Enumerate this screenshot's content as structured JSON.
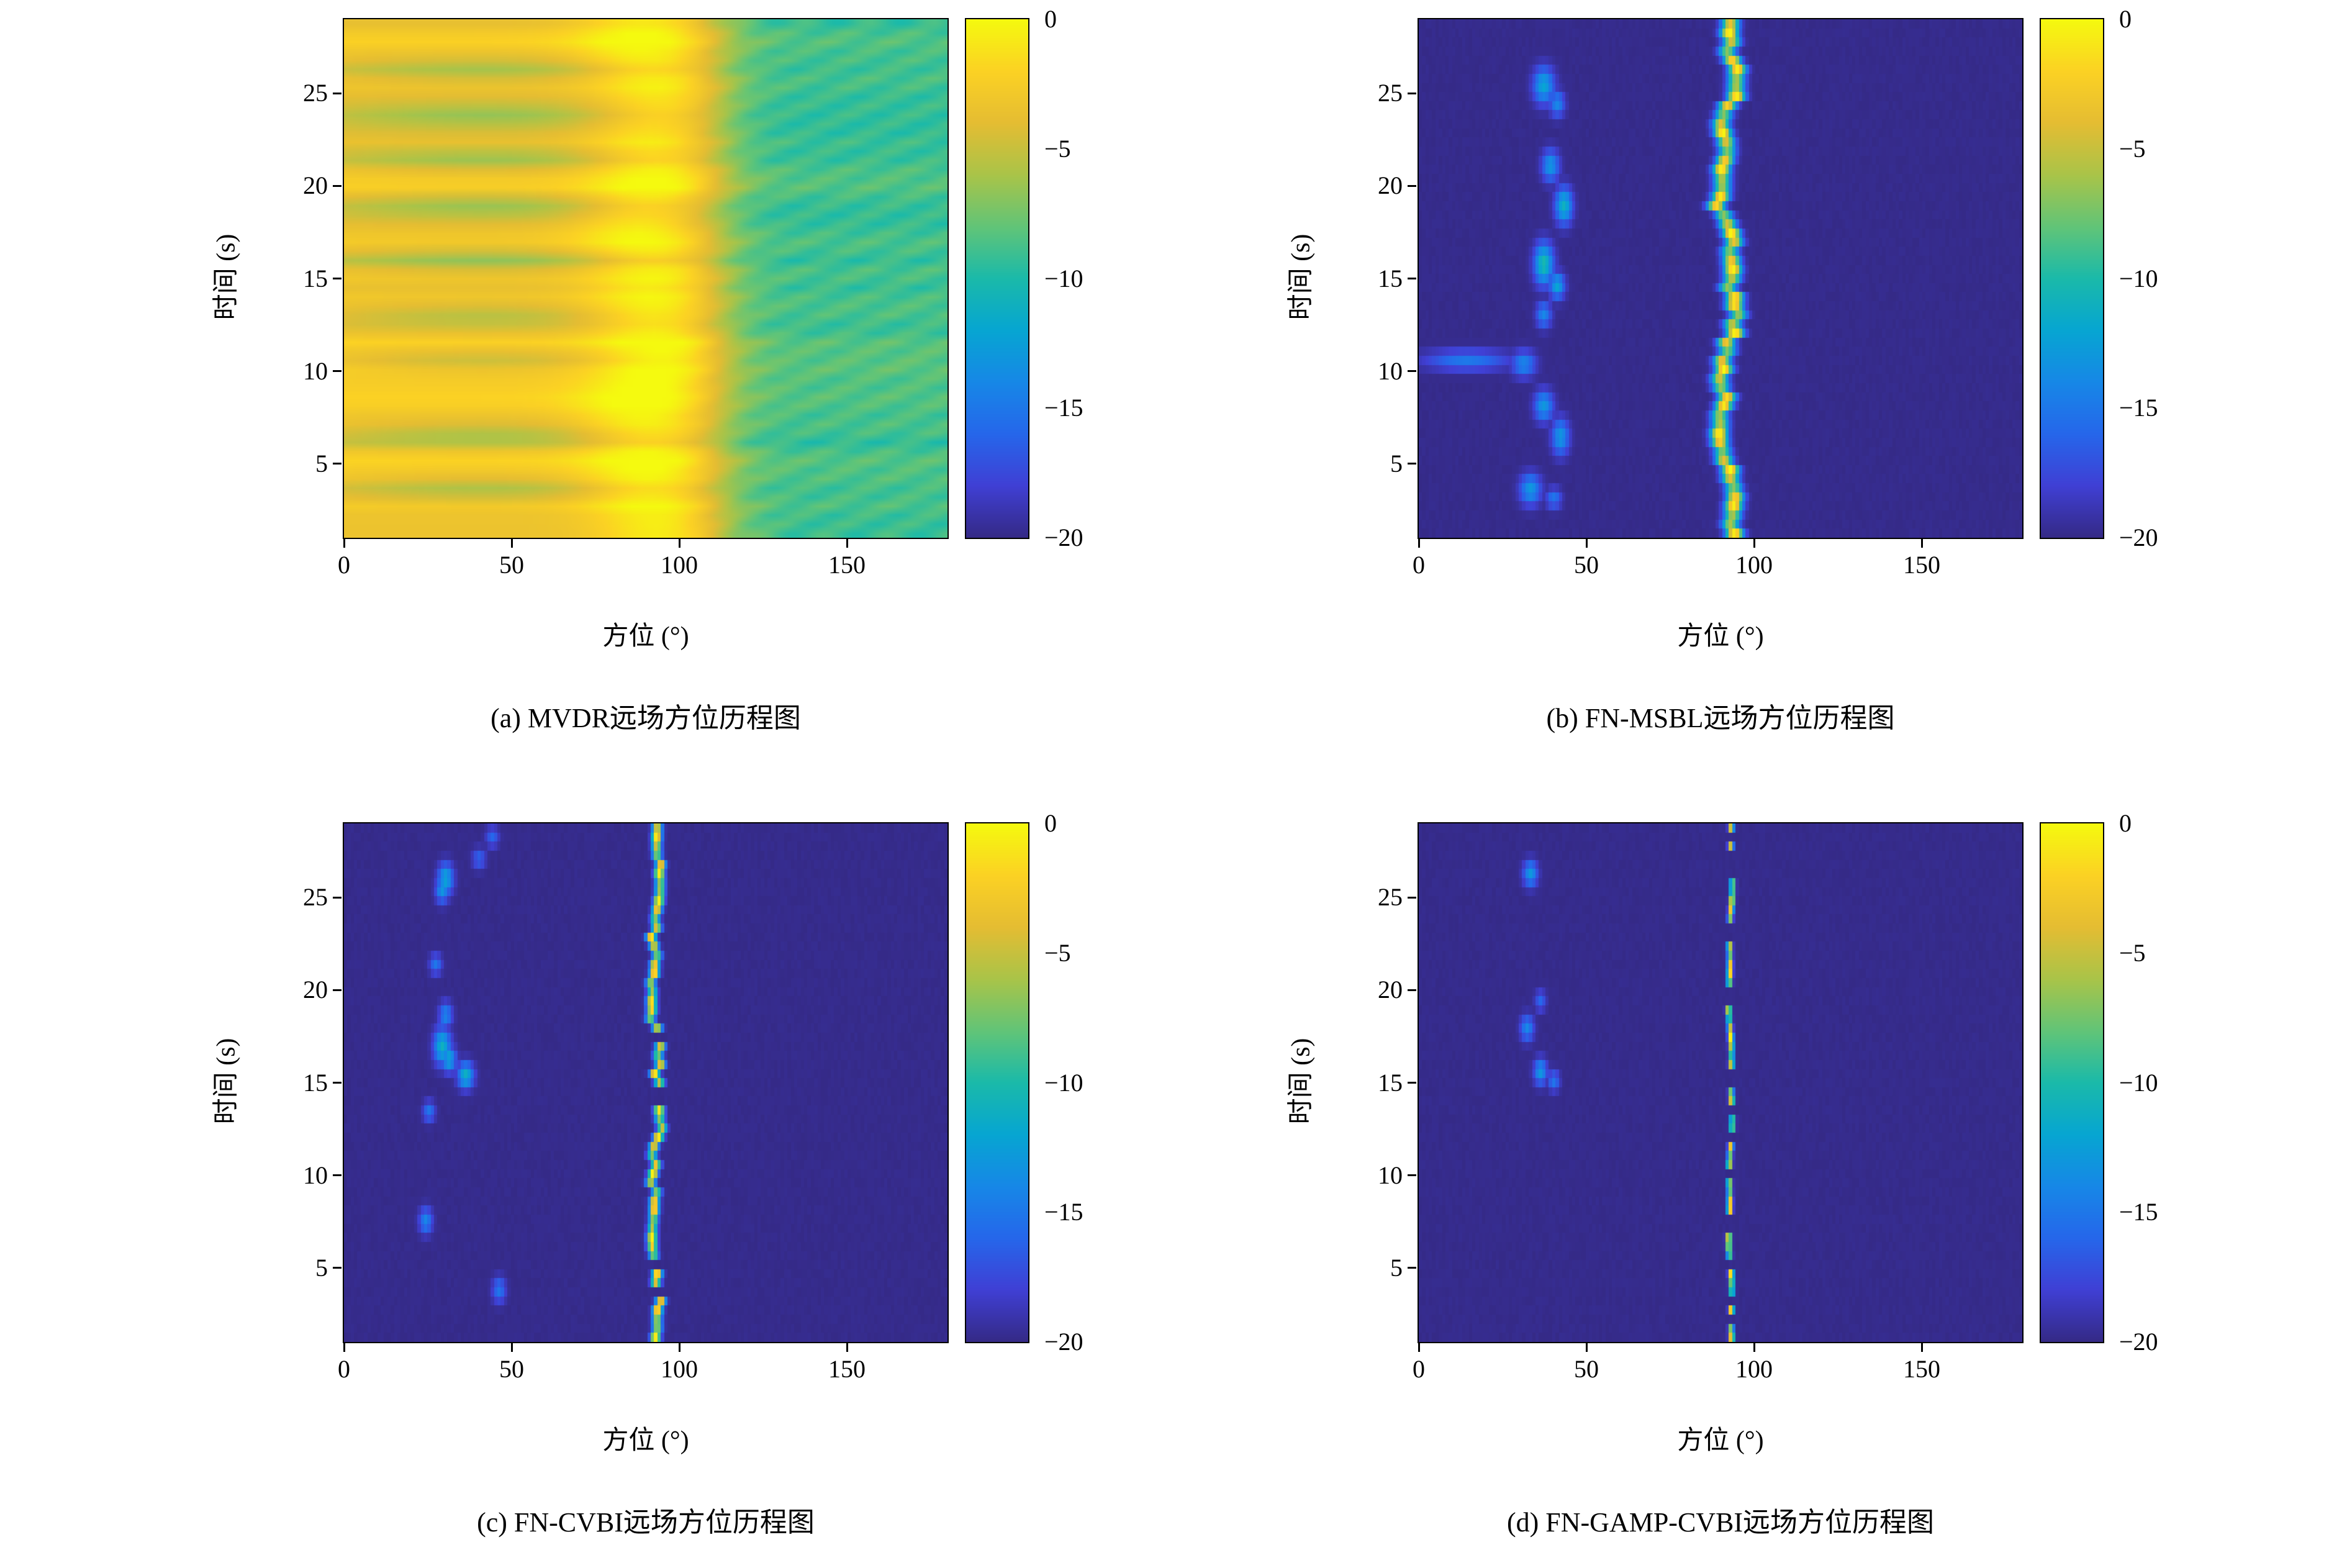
{
  "axes_labels": {
    "x_tick_labels": [
      "0",
      "50",
      "100",
      "150"
    ],
    "y_tick_labels": [
      "5",
      "10",
      "15",
      "20",
      "25"
    ],
    "colorbar_tick_labels": [
      "0",
      "−5",
      "−10",
      "−15",
      "−20"
    ]
  },
  "colors": {
    "background": "#ffffff",
    "axis": "#000000",
    "heat_low": "#352a87",
    "heat_high": "#f5fa0f"
  },
  "chart_data": [
    {
      "type": "heatmap",
      "caption": "(a) MVDR远场方位历程图",
      "xlabel": "方位 (°)",
      "ylabel": "时间 (s)",
      "xlim": [
        0,
        180
      ],
      "ylim": [
        1,
        29
      ],
      "x_ticks": [
        0,
        50,
        100,
        150
      ],
      "y_ticks": [
        5,
        10,
        15,
        20,
        25
      ],
      "colorbar_ticks": [
        0,
        -5,
        -10,
        -15,
        -20
      ],
      "value_range_db": [
        -20,
        0
      ],
      "colormap": "parula",
      "style": "mvdr",
      "track": {
        "bearing_deg": 92,
        "wander_deg": 3.5,
        "beamwidth_deg": 14,
        "peak_db": 0,
        "jitter_deg": 0
      },
      "left_plateau_db": -2.8,
      "right_level_db": -8.8,
      "transition_deg": 112,
      "stripe_noise_db": 1.7,
      "interference_times_s": [
        3.5,
        6.5,
        10.5,
        13,
        16,
        19,
        21.5,
        24,
        26.5
      ]
    },
    {
      "type": "heatmap",
      "caption": "(b) FN-MSBL远场方位历程图",
      "xlabel": "方位 (°)",
      "ylabel": "时间 (s)",
      "xlim": [
        0,
        180
      ],
      "ylim": [
        1,
        29
      ],
      "x_ticks": [
        0,
        50,
        100,
        150
      ],
      "y_ticks": [
        5,
        10,
        15,
        20,
        25
      ],
      "colorbar_ticks": [
        0,
        -5,
        -10,
        -15,
        -20
      ],
      "value_range_db": [
        -20,
        0
      ],
      "colormap": "parula",
      "style": "sparse",
      "background_db": -20,
      "track": {
        "bearing_deg": 92,
        "wander_deg": 3,
        "sigma_deg": 1.8,
        "peak_db": 0,
        "gap_fraction": 0,
        "jitter_deg": 0.9
      },
      "clutter": [
        {
          "t": 25.6,
          "bearing": 37,
          "level_db": -12,
          "sb": 2.2,
          "st": 0.7
        },
        {
          "t": 24.6,
          "bearing": 41,
          "level_db": -14,
          "sb": 1.6,
          "st": 0.5
        },
        {
          "t": 21.2,
          "bearing": 39,
          "level_db": -13,
          "sb": 1.8,
          "st": 0.6
        },
        {
          "t": 19.0,
          "bearing": 43,
          "level_db": -11,
          "sb": 1.8,
          "st": 0.7
        },
        {
          "t": 15.8,
          "bearing": 37,
          "level_db": -10,
          "sb": 2.0,
          "st": 0.8
        },
        {
          "t": 14.6,
          "bearing": 41,
          "level_db": -12,
          "sb": 1.6,
          "st": 0.5
        },
        {
          "t": 13.0,
          "bearing": 37,
          "level_db": -14,
          "sb": 1.6,
          "st": 0.5
        },
        {
          "t": 10.5,
          "bearing": 14,
          "level_db": -15,
          "sb": 9.0,
          "st": 0.4
        },
        {
          "t": 10.3,
          "bearing": 31,
          "level_db": -14,
          "sb": 2.5,
          "st": 0.5
        },
        {
          "t": 8.0,
          "bearing": 37,
          "level_db": -13,
          "sb": 2.0,
          "st": 0.6
        },
        {
          "t": 6.3,
          "bearing": 42,
          "level_db": -13,
          "sb": 1.8,
          "st": 0.7
        },
        {
          "t": 3.4,
          "bearing": 33,
          "level_db": -13,
          "sb": 2.2,
          "st": 0.6
        },
        {
          "t": 2.9,
          "bearing": 40,
          "level_db": -15,
          "sb": 1.6,
          "st": 0.4
        }
      ]
    },
    {
      "type": "heatmap",
      "caption": "(c) FN-CVBI远场方位历程图",
      "xlabel": "方位 (°)",
      "ylabel": "时间 (s)",
      "xlim": [
        0,
        180
      ],
      "ylim": [
        1,
        29
      ],
      "x_ticks": [
        0,
        50,
        100,
        150
      ],
      "y_ticks": [
        5,
        10,
        15,
        20,
        25
      ],
      "colorbar_ticks": [
        0,
        -5,
        -10,
        -15,
        -20
      ],
      "value_range_db": [
        -20,
        0
      ],
      "colormap": "parula",
      "style": "sparse",
      "background_db": -20,
      "track": {
        "bearing_deg": 93,
        "wander_deg": 1.4,
        "sigma_deg": 1.0,
        "peak_db": 0,
        "gap_fraction": 0.05,
        "jitter_deg": 0.6
      },
      "clutter": [
        {
          "t": 28.5,
          "bearing": 44,
          "level_db": -16,
          "sb": 1.4,
          "st": 0.4
        },
        {
          "t": 27.3,
          "bearing": 40,
          "level_db": -16,
          "sb": 1.4,
          "st": 0.4
        },
        {
          "t": 26.2,
          "bearing": 30,
          "level_db": -12,
          "sb": 1.6,
          "st": 0.6
        },
        {
          "t": 25.6,
          "bearing": 29,
          "level_db": -13,
          "sb": 1.4,
          "st": 0.5
        },
        {
          "t": 21.5,
          "bearing": 27,
          "level_db": -15,
          "sb": 1.3,
          "st": 0.4
        },
        {
          "t": 18.7,
          "bearing": 30,
          "level_db": -14,
          "sb": 1.4,
          "st": 0.5
        },
        {
          "t": 17.0,
          "bearing": 29,
          "level_db": -11,
          "sb": 1.8,
          "st": 0.7
        },
        {
          "t": 16.3,
          "bearing": 31,
          "level_db": -12,
          "sb": 1.5,
          "st": 0.5
        },
        {
          "t": 15.4,
          "bearing": 36,
          "level_db": -11,
          "sb": 1.7,
          "st": 0.5
        },
        {
          "t": 13.4,
          "bearing": 25,
          "level_db": -15,
          "sb": 1.3,
          "st": 0.4
        },
        {
          "t": 7.4,
          "bearing": 24,
          "level_db": -14,
          "sb": 1.4,
          "st": 0.5
        },
        {
          "t": 3.6,
          "bearing": 46,
          "level_db": -15,
          "sb": 1.4,
          "st": 0.5
        }
      ]
    },
    {
      "type": "heatmap",
      "caption": "(d) FN-GAMP-CVBI远场方位历程图",
      "xlabel": "方位 (°)",
      "ylabel": "时间 (s)",
      "xlim": [
        0,
        180
      ],
      "ylim": [
        1,
        29
      ],
      "x_ticks": [
        0,
        50,
        100,
        150
      ],
      "y_ticks": [
        5,
        10,
        15,
        20,
        25
      ],
      "colorbar_ticks": [
        0,
        -5,
        -10,
        -15,
        -20
      ],
      "value_range_db": [
        -20,
        0
      ],
      "colormap": "parula",
      "style": "sparse",
      "background_db": -20,
      "track": {
        "bearing_deg": 93,
        "wander_deg": 0.7,
        "sigma_deg": 0.55,
        "peak_db": 0,
        "gap_fraction": 0.3,
        "jitter_deg": 0.35
      },
      "clutter": [
        {
          "t": 26.5,
          "bearing": 33,
          "level_db": -13,
          "sb": 1.5,
          "st": 0.5
        },
        {
          "t": 19.5,
          "bearing": 36,
          "level_db": -16,
          "sb": 1.2,
          "st": 0.4
        },
        {
          "t": 18.0,
          "bearing": 32,
          "level_db": -14,
          "sb": 1.4,
          "st": 0.5
        },
        {
          "t": 15.6,
          "bearing": 36,
          "level_db": -13,
          "sb": 1.4,
          "st": 0.5
        },
        {
          "t": 15.1,
          "bearing": 40,
          "level_db": -15,
          "sb": 1.2,
          "st": 0.4
        }
      ]
    }
  ]
}
